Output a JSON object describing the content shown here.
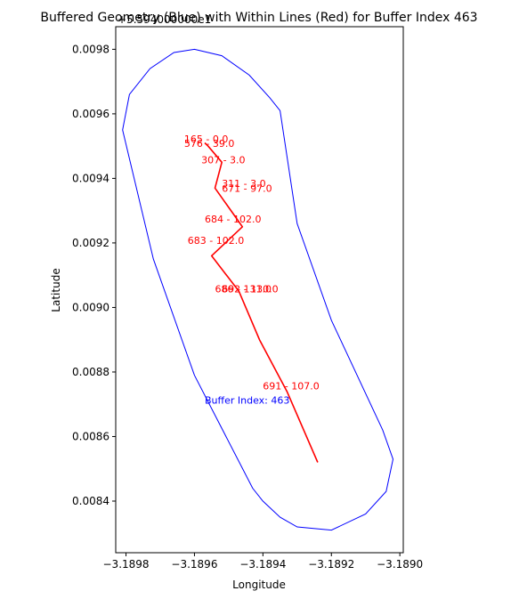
{
  "chart_data": {
    "type": "line",
    "title": "Buffered Geometry (Blue) with Within Lines (Red) for Buffer Index 463",
    "xlabel": "Longitude",
    "ylabel": "Latitude",
    "y_offset_label": "+5.594000000e1",
    "xlim": [
      -3.18983,
      -3.18899
    ],
    "ylim": [
      0.00824,
      0.00987
    ],
    "x_ticks": [
      -3.1898,
      -3.1896,
      -3.1894,
      -3.1892,
      -3.189
    ],
    "x_tick_labels": [
      "−3.1898",
      "−3.1896",
      "−3.1894",
      "−3.1892",
      "−3.1890"
    ],
    "y_ticks": [
      0.0084,
      0.0086,
      0.0088,
      0.009,
      0.0092,
      0.0094,
      0.0096,
      0.0098
    ],
    "y_tick_labels": [
      "0.0084",
      "0.0086",
      "0.0088",
      "0.0090",
      "0.0092",
      "0.0094",
      "0.0096",
      "0.0098"
    ],
    "grid": false,
    "colors": {
      "buffer": "#0000ff",
      "lines": "#ff0000",
      "axes": "#000000"
    },
    "buffer_polygon": {
      "x": [
        -3.1896,
        -3.18952,
        -3.18944,
        -3.18938,
        -3.18935,
        -3.1893,
        -3.1892,
        -3.18905,
        -3.18902,
        -3.18904,
        -3.1891,
        -3.1892,
        -3.1893,
        -3.18935,
        -3.1894,
        -3.18943,
        -3.1896,
        -3.18972,
        -3.18981,
        -3.18979,
        -3.18973,
        -3.18966,
        -3.1896
      ],
      "y": [
        0.0098,
        0.00978,
        0.00972,
        0.00965,
        0.00961,
        0.00926,
        0.00896,
        0.00862,
        0.00853,
        0.00843,
        0.00836,
        0.00831,
        0.00832,
        0.00835,
        0.0084,
        0.00844,
        0.00879,
        0.00915,
        0.00955,
        0.00966,
        0.00974,
        0.00979,
        0.0098
      ]
    },
    "series": [
      {
        "x": [
          -3.18957,
          -3.18956,
          -3.18952,
          -3.18954,
          -3.18948,
          -3.18946,
          -3.18955,
          -3.18947,
          -3.18941,
          -3.18933,
          -3.18924
        ],
        "y": [
          0.00951,
          0.0095,
          0.00945,
          0.00937,
          0.00928,
          0.00925,
          0.00916,
          0.00905,
          0.0089,
          0.00874,
          0.00852
        ]
      }
    ],
    "annotations": [
      {
        "text": "165 - 0.0",
        "x": -3.18963,
        "y": 0.009512,
        "color": "#ff0000"
      },
      {
        "text": "576 - 39.0",
        "x": -3.18963,
        "y": 0.009497,
        "color": "#ff0000"
      },
      {
        "text": "307 - 3.0",
        "x": -3.18958,
        "y": 0.009447,
        "color": "#ff0000"
      },
      {
        "text": "311 - 3.0",
        "x": -3.18952,
        "y": 0.009373,
        "color": "#ff0000"
      },
      {
        "text": "671 - 97.0",
        "x": -3.18952,
        "y": 0.009358,
        "color": "#ff0000"
      },
      {
        "text": "684 - 102.0",
        "x": -3.18957,
        "y": 0.009263,
        "color": "#ff0000"
      },
      {
        "text": "683 - 102.0",
        "x": -3.18962,
        "y": 0.009197,
        "color": "#ff0000"
      },
      {
        "text": "686 - 131.0",
        "x": -3.18954,
        "y": 0.009047,
        "color": "#ff0000"
      },
      {
        "text": "692 - 130.0",
        "x": -3.18952,
        "y": 0.009047,
        "color": "#ff0000"
      },
      {
        "text": "691 - 107.0",
        "x": -3.1894,
        "y": 0.008746,
        "color": "#ff0000"
      },
      {
        "text": "Buffer Index: 463",
        "x": -3.18957,
        "y": 0.008702,
        "color": "#0000ff"
      }
    ]
  }
}
